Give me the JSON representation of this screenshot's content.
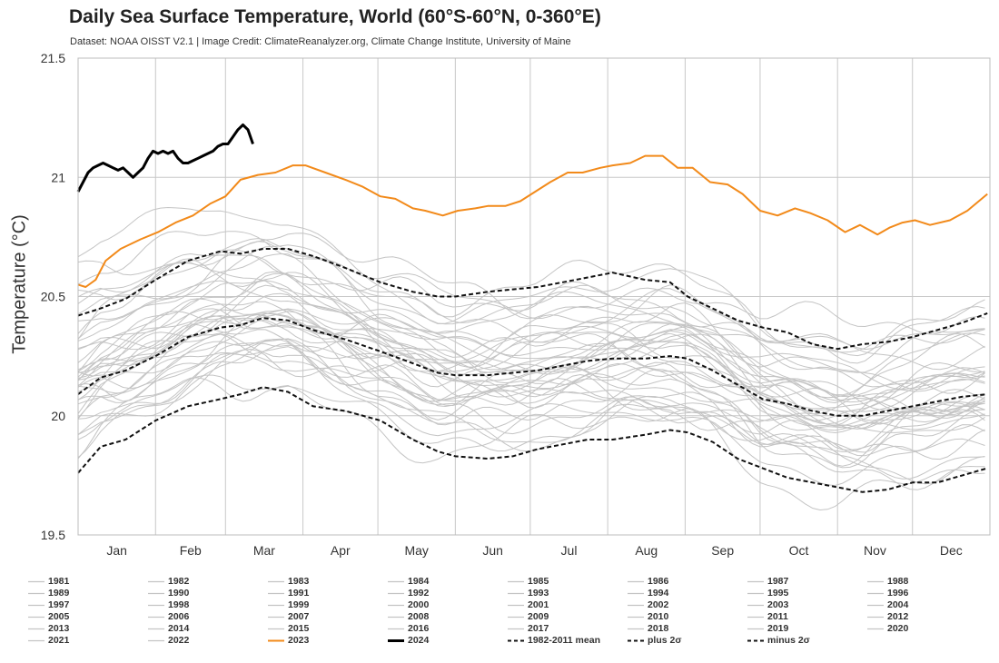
{
  "chart_data": {
    "type": "line",
    "title": "Daily Sea Surface Temperature, World (60°S-60°N, 0-360°E)",
    "subtitle": "Dataset: NOAA OISST V2.1 | Image Credit: ClimateReanalyzer.org, Climate Change Institute, University of Maine",
    "xlabel": "",
    "ylabel": "Temperature (°C)",
    "xlim": [
      1,
      366
    ],
    "ylim": [
      19.5,
      21.5
    ],
    "yticks": [
      19.5,
      20,
      20.5,
      21,
      21.5
    ],
    "month_labels": [
      "Jan",
      "Feb",
      "Mar",
      "Apr",
      "May",
      "Jun",
      "Jul",
      "Aug",
      "Sep",
      "Oct",
      "Nov",
      "Dec"
    ],
    "month_starts": [
      1,
      32,
      60,
      91,
      121,
      152,
      182,
      213,
      244,
      274,
      305,
      335,
      366
    ],
    "grid": true,
    "legend_position": "bottom",
    "legend_columns": 8,
    "colors": {
      "background_years": "#c4c4c4",
      "year_2023": "#f28a1a",
      "year_2024": "#000000",
      "mean": "#111111",
      "grid": "#c8c8c8"
    },
    "year_series": [
      {
        "name": "1981",
        "approx_jan1": 19.95,
        "approx_anomaly": -0.2
      },
      {
        "name": "1982",
        "approx_jan1": 19.85,
        "approx_anomaly": -0.28
      },
      {
        "name": "1983",
        "approx_jan1": 20.15,
        "approx_anomaly": -0.1
      },
      {
        "name": "1984",
        "approx_jan1": 19.9,
        "approx_anomaly": -0.24
      },
      {
        "name": "1985",
        "approx_jan1": 19.9,
        "approx_anomaly": -0.25
      },
      {
        "name": "1986",
        "approx_jan1": 20.0,
        "approx_anomaly": -0.2
      },
      {
        "name": "1987",
        "approx_jan1": 20.15,
        "approx_anomaly": -0.05
      },
      {
        "name": "1988",
        "approx_jan1": 20.15,
        "approx_anomaly": -0.12
      },
      {
        "name": "1989",
        "approx_jan1": 19.95,
        "approx_anomaly": -0.2
      },
      {
        "name": "1990",
        "approx_jan1": 20.05,
        "approx_anomaly": -0.1
      },
      {
        "name": "1991",
        "approx_jan1": 20.1,
        "approx_anomaly": -0.1
      },
      {
        "name": "1992",
        "approx_jan1": 20.2,
        "approx_anomaly": -0.15
      },
      {
        "name": "1993",
        "approx_jan1": 20.0,
        "approx_anomaly": -0.12
      },
      {
        "name": "1994",
        "approx_jan1": 20.05,
        "approx_anomaly": -0.06
      },
      {
        "name": "1995",
        "approx_jan1": 20.15,
        "approx_anomaly": -0.05
      },
      {
        "name": "1996",
        "approx_jan1": 20.05,
        "approx_anomaly": -0.1
      },
      {
        "name": "1997",
        "approx_jan1": 20.05,
        "approx_anomaly": 0.08
      },
      {
        "name": "1998",
        "approx_jan1": 20.45,
        "approx_anomaly": 0.1
      },
      {
        "name": "1999",
        "approx_jan1": 20.1,
        "approx_anomaly": -0.05
      },
      {
        "name": "2000",
        "approx_jan1": 20.05,
        "approx_anomaly": -0.05
      },
      {
        "name": "2001",
        "approx_jan1": 20.1,
        "approx_anomaly": 0.02
      },
      {
        "name": "2002",
        "approx_jan1": 20.2,
        "approx_anomaly": 0.08
      },
      {
        "name": "2003",
        "approx_jan1": 20.35,
        "approx_anomaly": 0.08
      },
      {
        "name": "2004",
        "approx_jan1": 20.25,
        "approx_anomaly": 0.06
      },
      {
        "name": "2005",
        "approx_jan1": 20.25,
        "approx_anomaly": 0.08
      },
      {
        "name": "2006",
        "approx_jan1": 20.2,
        "approx_anomaly": 0.07
      },
      {
        "name": "2007",
        "approx_jan1": 20.3,
        "approx_anomaly": 0.0
      },
      {
        "name": "2008",
        "approx_jan1": 20.05,
        "approx_anomaly": -0.02
      },
      {
        "name": "2009",
        "approx_jan1": 20.1,
        "approx_anomaly": 0.1
      },
      {
        "name": "2010",
        "approx_jan1": 20.45,
        "approx_anomaly": 0.1
      },
      {
        "name": "2011",
        "approx_jan1": 20.1,
        "approx_anomaly": 0.02
      },
      {
        "name": "2012",
        "approx_jan1": 20.15,
        "approx_anomaly": 0.1
      },
      {
        "name": "2013",
        "approx_jan1": 20.25,
        "approx_anomaly": 0.1
      },
      {
        "name": "2014",
        "approx_jan1": 20.25,
        "approx_anomaly": 0.2
      },
      {
        "name": "2015",
        "approx_jan1": 20.4,
        "approx_anomaly": 0.32
      },
      {
        "name": "2016",
        "approx_jan1": 20.7,
        "approx_anomaly": 0.3
      },
      {
        "name": "2017",
        "approx_jan1": 20.45,
        "approx_anomaly": 0.25
      },
      {
        "name": "2018",
        "approx_jan1": 20.35,
        "approx_anomaly": 0.2
      },
      {
        "name": "2019",
        "approx_jan1": 20.5,
        "approx_anomaly": 0.3
      },
      {
        "name": "2020",
        "approx_jan1": 20.6,
        "approx_anomaly": 0.28
      },
      {
        "name": "2021",
        "approx_jan1": 20.4,
        "approx_anomaly": 0.2
      },
      {
        "name": "2022",
        "approx_jan1": 20.45,
        "approx_anomaly": 0.25
      }
    ],
    "highlight_series": [
      {
        "name": "2023",
        "x": [
          1,
          4,
          8,
          12,
          18,
          26,
          33,
          40,
          47,
          54,
          60,
          66,
          73,
          80,
          87,
          92,
          100,
          108,
          115,
          122,
          128,
          135,
          140,
          147,
          153,
          160,
          165,
          172,
          178,
          184,
          190,
          197,
          203,
          210,
          215,
          222,
          228,
          235,
          241,
          247,
          254,
          261,
          267,
          274,
          281,
          288,
          294,
          301,
          308,
          314,
          321,
          326,
          331,
          336,
          342,
          350,
          357,
          365
        ],
        "y": [
          20.55,
          20.54,
          20.57,
          20.65,
          20.7,
          20.74,
          20.77,
          20.81,
          20.84,
          20.89,
          20.92,
          20.99,
          21.01,
          21.02,
          21.05,
          21.05,
          21.02,
          20.99,
          20.96,
          20.92,
          20.91,
          20.87,
          20.86,
          20.84,
          20.86,
          20.87,
          20.88,
          20.88,
          20.9,
          20.94,
          20.98,
          21.02,
          21.02,
          21.04,
          21.05,
          21.06,
          21.09,
          21.09,
          21.04,
          21.04,
          20.98,
          20.97,
          20.93,
          20.86,
          20.84,
          20.87,
          20.85,
          20.82,
          20.77,
          20.8,
          20.76,
          20.79,
          20.81,
          20.82,
          20.8,
          20.82,
          20.86,
          20.93
        ]
      },
      {
        "name": "2024",
        "x": [
          1,
          3,
          5,
          7,
          9,
          11,
          13,
          15,
          17,
          19,
          21,
          23,
          25,
          27,
          29,
          31,
          33,
          35,
          37,
          39,
          41,
          43,
          45,
          47,
          49,
          51,
          53,
          55,
          57,
          59,
          61,
          63,
          65,
          67,
          69,
          71
        ],
        "y": [
          20.94,
          20.98,
          21.02,
          21.04,
          21.05,
          21.06,
          21.05,
          21.04,
          21.03,
          21.04,
          21.02,
          21.0,
          21.02,
          21.04,
          21.08,
          21.11,
          21.1,
          21.11,
          21.1,
          21.11,
          21.08,
          21.06,
          21.06,
          21.07,
          21.08,
          21.09,
          21.1,
          21.11,
          21.13,
          21.14,
          21.14,
          21.17,
          21.2,
          21.22,
          21.2,
          21.14
        ]
      }
    ],
    "reference_series": [
      {
        "name": "1982-2011 mean",
        "x": [
          1,
          10,
          20,
          32,
          45,
          58,
          66,
          75,
          85,
          95,
          108,
          122,
          135,
          145,
          152,
          165,
          175,
          185,
          195,
          205,
          215,
          228,
          238,
          245,
          255,
          265,
          275,
          285,
          295,
          305,
          315,
          325,
          335,
          345,
          355,
          365
        ],
        "y": [
          20.09,
          20.16,
          20.19,
          20.25,
          20.33,
          20.37,
          20.38,
          20.41,
          20.4,
          20.36,
          20.32,
          20.27,
          20.22,
          20.18,
          20.17,
          20.17,
          20.18,
          20.19,
          20.21,
          20.23,
          20.24,
          20.24,
          20.25,
          20.24,
          20.19,
          20.13,
          20.07,
          20.05,
          20.02,
          20.0,
          20.0,
          20.02,
          20.04,
          20.06,
          20.08,
          20.09
        ]
      },
      {
        "name": "plus 2σ",
        "x": [
          1,
          10,
          20,
          32,
          45,
          58,
          66,
          75,
          85,
          95,
          108,
          122,
          135,
          145,
          152,
          165,
          175,
          185,
          195,
          205,
          215,
          228,
          238,
          245,
          255,
          265,
          275,
          285,
          295,
          305,
          315,
          325,
          335,
          345,
          355,
          365
        ],
        "y": [
          20.42,
          20.45,
          20.49,
          20.57,
          20.65,
          20.69,
          20.68,
          20.7,
          20.7,
          20.67,
          20.62,
          20.56,
          20.52,
          20.5,
          20.5,
          20.52,
          20.53,
          20.54,
          20.56,
          20.58,
          20.6,
          20.57,
          20.56,
          20.5,
          20.45,
          20.4,
          20.37,
          20.35,
          20.3,
          20.28,
          20.3,
          20.31,
          20.33,
          20.36,
          20.39,
          20.43
        ]
      },
      {
        "name": "minus 2σ",
        "x": [
          1,
          10,
          20,
          32,
          45,
          58,
          66,
          75,
          85,
          95,
          108,
          122,
          135,
          145,
          152,
          165,
          175,
          185,
          195,
          205,
          215,
          228,
          238,
          245,
          255,
          265,
          275,
          285,
          295,
          305,
          315,
          325,
          335,
          345,
          355,
          365
        ],
        "y": [
          19.76,
          19.87,
          19.9,
          19.98,
          20.04,
          20.07,
          20.09,
          20.12,
          20.1,
          20.04,
          20.02,
          19.98,
          19.9,
          19.85,
          19.83,
          19.82,
          19.83,
          19.86,
          19.88,
          19.9,
          19.9,
          19.92,
          19.94,
          19.93,
          19.89,
          19.82,
          19.78,
          19.74,
          19.72,
          19.7,
          19.68,
          19.69,
          19.72,
          19.72,
          19.75,
          19.78
        ]
      }
    ]
  }
}
